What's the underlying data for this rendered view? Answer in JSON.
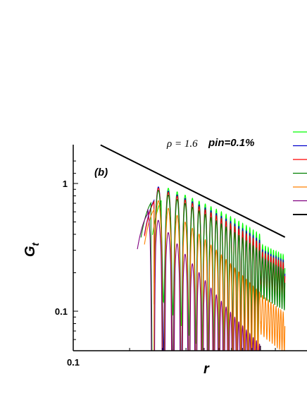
{
  "chart_data": {
    "type": "line",
    "xscale": "log",
    "yscale": "log",
    "xlim": [
      0.1,
      1.35
    ],
    "ylim": [
      0.05,
      2.0
    ],
    "xlabel": "r",
    "ylabel": "G",
    "ylabel_sub": "t",
    "xticks": [
      {
        "value": 0.1,
        "label": "0.1"
      }
    ],
    "yticks": [
      {
        "value": 1,
        "label": "1"
      },
      {
        "value": 0.1,
        "label": "0.1"
      }
    ],
    "panel_label": "(b)",
    "annotation_rho": "ρ = 1.6",
    "annotation_pin": "pin=0.1%",
    "grid": false,
    "legend_position": "right",
    "reference_line": {
      "x": [
        0.14,
        1.35
      ],
      "y": [
        2.0,
        0.38
      ],
      "color": "#000000"
    },
    "series": [
      {
        "color": "#00ff00",
        "start": 0.265,
        "peak": 0.88,
        "base": 0.58,
        "lmin": 0.72,
        "lmax": 0.6,
        "decay": 0.25
      },
      {
        "color": "#0000cc",
        "start": 0.24,
        "peak": 0.88,
        "base": 0.55,
        "lmin": 0.62,
        "lmax": 0.55,
        "decay": 0.3
      },
      {
        "color": "#ff0000",
        "start": 0.24,
        "peak": 0.86,
        "base": 0.54,
        "lmin": 0.62,
        "lmax": 0.55,
        "decay": 0.33
      },
      {
        "color": "#008000",
        "start": 0.23,
        "peak": 0.84,
        "base": 0.52,
        "lmin": 0.62,
        "lmax": 0.5,
        "decay": 0.42
      },
      {
        "color": "#ff8000",
        "start": 0.24,
        "peak": 0.74,
        "base": 0.42,
        "lmin": 0.5,
        "lmax": 0.2,
        "decay": 1.05
      },
      {
        "color": "#800080",
        "start": 0.22,
        "peak": 0.68,
        "base": 0.28,
        "lmin": 0.35,
        "lmax": 0.08,
        "decay": 2.1
      }
    ]
  }
}
